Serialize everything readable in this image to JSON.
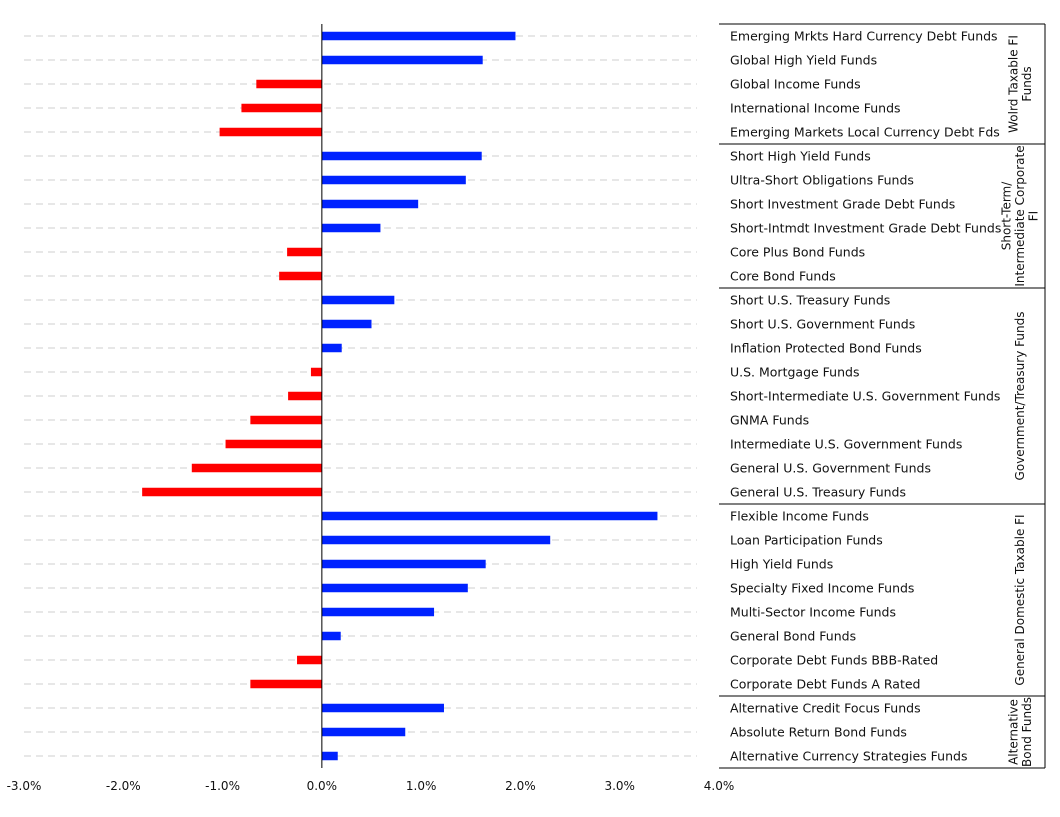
{
  "chart_data": {
    "type": "bar",
    "orientation": "horizontal",
    "title": "",
    "xlabel": "",
    "ylabel": "",
    "xlim": [
      -3.0,
      4.0
    ],
    "x_ticks": [
      -3,
      -2,
      -1,
      0,
      1,
      2,
      3,
      4
    ],
    "x_tick_labels": [
      "-3.0%",
      "-2.0%",
      "-1.0%",
      "0.0%",
      "1.0%",
      "2.0%",
      "3.0%",
      "4.0%"
    ],
    "grid": "dashed horizontal",
    "colors": {
      "positive": "#0022ff",
      "negative": "#ff0000"
    },
    "groups": [
      {
        "label": "Wolrd Taxable FI Funds",
        "label_lines": [
          "Wolrd Taxable FI",
          "Funds"
        ],
        "items": [
          {
            "label": "Emerging Mrkts Hard Currency Debt Funds",
            "value": 1.95
          },
          {
            "label": "Global High Yield Funds",
            "value": 1.62
          },
          {
            "label": "Global Income Funds",
            "value": -0.66
          },
          {
            "label": "International Income Funds",
            "value": -0.81
          },
          {
            "label": "Emerging Markets Local Currency Debt Fds",
            "value": -1.03
          }
        ]
      },
      {
        "label": "Short-Term/ Intermediate Corporate FI",
        "label_lines": [
          "Short-Term/",
          "Intermediate Corporate",
          "FI"
        ],
        "items": [
          {
            "label": "Short High Yield Funds",
            "value": 1.61
          },
          {
            "label": "Ultra-Short Obligations Funds",
            "value": 1.45
          },
          {
            "label": "Short Investment Grade Debt Funds",
            "value": 0.97
          },
          {
            "label": "Short-Intmdt Investment Grade Debt Funds",
            "value": 0.59
          },
          {
            "label": "Core Plus Bond Funds",
            "value": -0.35
          },
          {
            "label": "Core Bond Funds",
            "value": -0.43
          }
        ]
      },
      {
        "label": "Government/Treasury Funds",
        "label_lines": [
          "Government/Treasury Funds"
        ],
        "items": [
          {
            "label": "Short U.S. Treasury Funds",
            "value": 0.73
          },
          {
            "label": "Short U.S. Government Funds",
            "value": 0.5
          },
          {
            "label": "Inflation Protected Bond Funds",
            "value": 0.2
          },
          {
            "label": "U.S. Mortgage Funds",
            "value": -0.11
          },
          {
            "label": "Short-Intermediate U.S. Government Funds",
            "value": -0.34
          },
          {
            "label": "GNMA Funds",
            "value": -0.72
          },
          {
            "label": "Intermediate U.S. Government Funds",
            "value": -0.97
          },
          {
            "label": "General U.S. Government Funds",
            "value": -1.31
          },
          {
            "label": "General U.S. Treasury Funds",
            "value": -1.81
          }
        ]
      },
      {
        "label": "General Domestic Taxable FI",
        "label_lines": [
          "General Domestic Taxable FI"
        ],
        "items": [
          {
            "label": "Flexible Income Funds",
            "value": 3.38
          },
          {
            "label": "Loan Participation Funds",
            "value": 2.3
          },
          {
            "label": "High Yield Funds",
            "value": 1.65
          },
          {
            "label": "Specialty Fixed Income Funds",
            "value": 1.47
          },
          {
            "label": "Multi-Sector Income Funds",
            "value": 1.13
          },
          {
            "label": "General Bond Funds",
            "value": 0.19
          },
          {
            "label": "Corporate Debt Funds BBB-Rated",
            "value": -0.25
          },
          {
            "label": "Corporate Debt Funds A Rated",
            "value": -0.72
          }
        ]
      },
      {
        "label": "Alternative Bond Funds",
        "label_lines": [
          "Alternative",
          "Bond Funds"
        ],
        "items": [
          {
            "label": "Alternative Credit Focus Funds",
            "value": 1.23
          },
          {
            "label": "Absolute Return Bond Funds",
            "value": 0.84
          },
          {
            "label": "Alternative Currency Strategies Funds",
            "value": 0.16
          }
        ]
      }
    ]
  }
}
